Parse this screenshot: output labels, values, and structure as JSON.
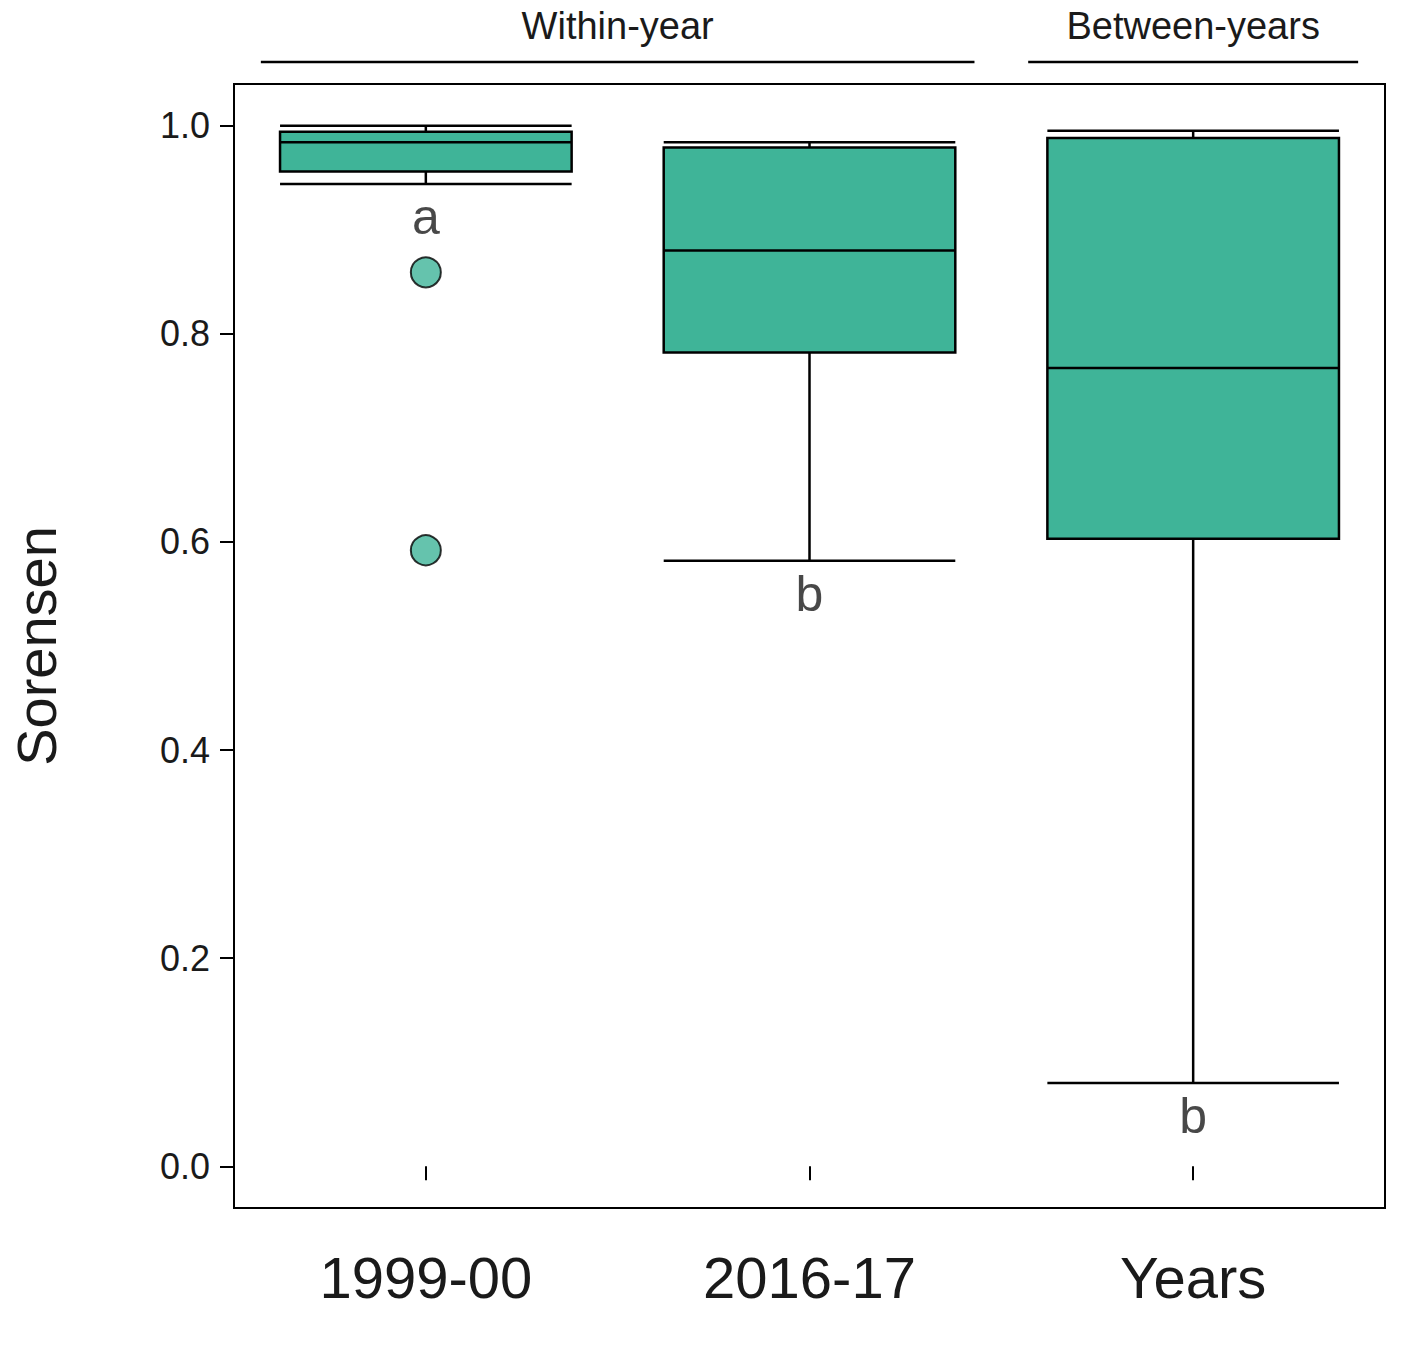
{
  "chart_data": {
    "type": "boxplot",
    "y_label": "Sorensen",
    "categories": [
      "1999-00",
      "2016-17",
      "Years"
    ],
    "boxes": [
      {
        "min": 0.944,
        "q1": 0.956,
        "median": 0.984,
        "q3": 0.994,
        "max": 1.0,
        "outliers": [
          0.859,
          0.592
        ]
      },
      {
        "min": 0.582,
        "q1": 0.782,
        "median": 0.88,
        "q3": 0.979,
        "max": 0.984,
        "outliers": []
      },
      {
        "min": 0.08,
        "q1": 0.603,
        "median": 0.767,
        "q3": 0.988,
        "max": 0.995,
        "outliers": []
      }
    ],
    "color": "#3fb498",
    "ylim": [
      -0.04,
      1.04
    ],
    "yticks": [
      {
        "value": 0,
        "label": "0.0"
      },
      {
        "value": 0.2,
        "label": "0.2"
      },
      {
        "value": 0.4,
        "label": "0.4"
      },
      {
        "value": 0.6,
        "label": "0.6"
      },
      {
        "value": 0.8,
        "label": "0.8"
      },
      {
        "value": 1,
        "label": "1.0"
      }
    ],
    "grid": false,
    "annotations": [
      {
        "category": "1999-00",
        "text": "a"
      },
      {
        "category": "2016-17",
        "text": "b"
      },
      {
        "category": "Years",
        "text": "b"
      }
    ],
    "groups": [
      {
        "label": "Within-year",
        "categories": [
          "1999-00",
          "2016-17"
        ]
      },
      {
        "label": "Between-years",
        "categories": [
          "Years"
        ]
      }
    ]
  }
}
